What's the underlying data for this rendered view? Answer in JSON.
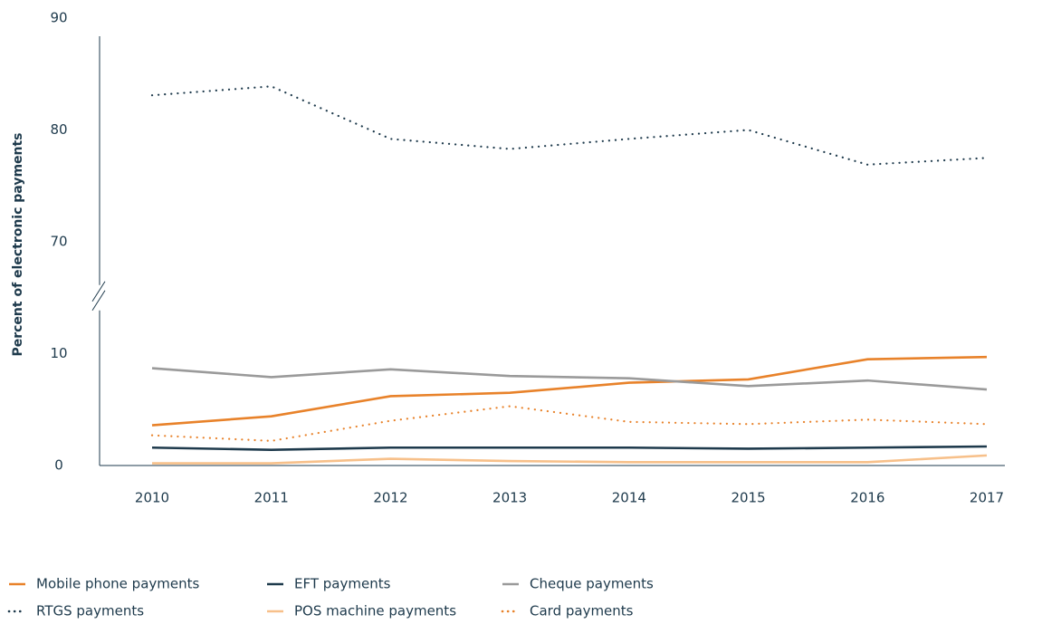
{
  "chart_data": {
    "type": "line",
    "y_label": "Percent of electronic payments",
    "categories": [
      "2010",
      "2011",
      "2012",
      "2013",
      "2014",
      "2015",
      "2016",
      "2017"
    ],
    "series": [
      {
        "name": "Mobile phone payments",
        "color": "#e8822a",
        "style": "solid",
        "values": [
          3.6,
          4.4,
          6.2,
          6.5,
          7.4,
          7.7,
          9.5,
          9.7
        ]
      },
      {
        "name": "EFT payments",
        "color": "#1e3a4c",
        "style": "solid",
        "values": [
          1.6,
          1.4,
          1.6,
          1.6,
          1.6,
          1.5,
          1.6,
          1.7
        ]
      },
      {
        "name": "Cheque payments",
        "color": "#9a9a9a",
        "style": "solid",
        "values": [
          8.7,
          7.9,
          8.6,
          8.0,
          7.8,
          7.1,
          7.6,
          6.8
        ]
      },
      {
        "name": "RTGS payments",
        "color": "#1e3a4c",
        "style": "dotted",
        "values": [
          83.1,
          83.9,
          79.2,
          78.3,
          79.2,
          80.0,
          76.9,
          77.5
        ]
      },
      {
        "name": "POS machine payments",
        "color": "#f7c08a",
        "style": "solid",
        "values": [
          0.2,
          0.2,
          0.6,
          0.4,
          0.3,
          0.3,
          0.3,
          0.9
        ]
      },
      {
        "name": "Card payments",
        "color": "#e8822a",
        "style": "dotted",
        "values": [
          2.7,
          2.2,
          4.0,
          5.3,
          3.9,
          3.7,
          4.1,
          3.7
        ]
      }
    ],
    "ylim": [
      0,
      90
    ],
    "yticks": [
      0,
      10,
      70,
      80,
      90
    ],
    "y_break": [
      10,
      70
    ],
    "grid": false
  }
}
